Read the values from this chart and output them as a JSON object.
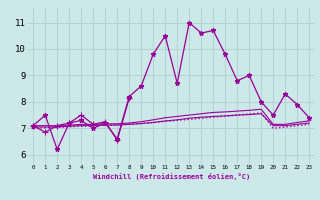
{
  "bg_color": "#cce8e8",
  "grid_color": "#aacccc",
  "line_color": "#990099",
  "xlabel": "Windchill (Refroidissement éolien,°C)",
  "ylabel_ticks": [
    6,
    7,
    8,
    9,
    10,
    11
  ],
  "xlim": [
    -0.5,
    23.5
  ],
  "ylim": [
    5.65,
    11.55
  ],
  "series": [
    {
      "x": [
        0,
        1,
        2,
        3,
        4,
        5,
        6,
        7,
        8,
        9,
        10,
        11,
        12,
        13,
        14,
        15,
        16,
        17,
        18,
        19,
        20,
        21,
        22,
        23
      ],
      "y": [
        7.1,
        7.5,
        6.2,
        7.2,
        7.3,
        7.0,
        7.2,
        6.6,
        8.2,
        8.6,
        9.8,
        10.5,
        8.7,
        11.0,
        10.6,
        10.7,
        9.8,
        8.8,
        9.0,
        8.0,
        7.5,
        8.3,
        7.9,
        7.4
      ],
      "marker": "*",
      "markersize": 3.5,
      "linestyle": "-",
      "linewidth": 0.9
    },
    {
      "x": [
        0,
        1,
        2,
        3,
        4,
        5,
        6,
        7,
        8,
        9,
        10,
        11,
        12,
        13,
        14,
        15,
        16,
        17,
        18,
        19,
        20,
        21,
        22,
        23
      ],
      "y": [
        7.05,
        7.05,
        7.05,
        7.08,
        7.1,
        7.1,
        7.12,
        7.12,
        7.15,
        7.18,
        7.22,
        7.28,
        7.32,
        7.38,
        7.42,
        7.45,
        7.47,
        7.5,
        7.52,
        7.55,
        7.1,
        7.1,
        7.15,
        7.2
      ],
      "marker": null,
      "markersize": 0,
      "linestyle": "-",
      "linewidth": 0.8
    },
    {
      "x": [
        0,
        1,
        2,
        3,
        4,
        5,
        6,
        7,
        8,
        9,
        10,
        11,
        12,
        13,
        14,
        15,
        16,
        17,
        18,
        19,
        20,
        21,
        22,
        23
      ],
      "y": [
        7.1,
        7.1,
        7.1,
        7.12,
        7.15,
        7.15,
        7.17,
        7.17,
        7.2,
        7.25,
        7.32,
        7.4,
        7.45,
        7.5,
        7.55,
        7.6,
        7.62,
        7.65,
        7.68,
        7.72,
        7.15,
        7.15,
        7.22,
        7.28
      ],
      "marker": null,
      "markersize": 0,
      "linestyle": "-",
      "linewidth": 0.8
    },
    {
      "x": [
        0,
        1,
        2,
        3,
        4,
        5,
        6,
        7,
        8,
        9,
        10,
        11,
        12,
        13,
        14,
        15,
        16,
        17,
        18,
        19,
        20,
        21,
        22,
        23
      ],
      "y": [
        7.0,
        7.02,
        7.04,
        7.06,
        7.08,
        7.1,
        7.12,
        7.14,
        7.16,
        7.18,
        7.22,
        7.26,
        7.3,
        7.34,
        7.38,
        7.42,
        7.46,
        7.5,
        7.54,
        7.58,
        7.0,
        7.05,
        7.1,
        7.15
      ],
      "marker": null,
      "markersize": 0,
      "linestyle": ":",
      "linewidth": 1.0
    },
    {
      "x": [
        0,
        1,
        2,
        3,
        4,
        5,
        6,
        7,
        8,
        9,
        10,
        11,
        12,
        13,
        14,
        15,
        16,
        17,
        18,
        19,
        20,
        21,
        22,
        23
      ],
      "y": [
        7.1,
        6.85,
        7.1,
        7.2,
        7.5,
        7.15,
        7.25,
        6.55,
        8.15,
        null,
        null,
        null,
        null,
        null,
        null,
        null,
        null,
        null,
        null,
        null,
        null,
        null,
        null,
        null
      ],
      "marker": "+",
      "markersize": 4.5,
      "linestyle": "-",
      "linewidth": 0.9
    }
  ]
}
